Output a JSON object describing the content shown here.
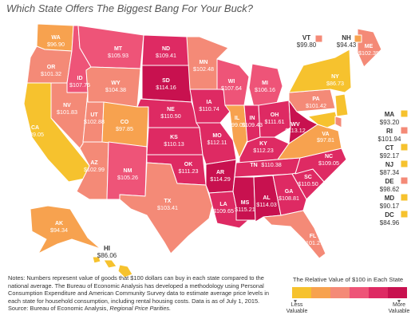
{
  "title": "Which State Offers The Biggest Bang For Your Buck?",
  "colors": {
    "c1": "#f6c22e",
    "c2": "#f7a24f",
    "c3": "#f48a77",
    "c4": "#ee5478",
    "c5": "#de2a63",
    "c6": "#c8114f"
  },
  "states": {
    "WA": {
      "abbr": "WA",
      "value": "$96.90",
      "color": "#f7a24f"
    },
    "OR": {
      "abbr": "OR",
      "value": "$101.32",
      "color": "#f48a77"
    },
    "CA": {
      "abbr": "CA",
      "value": "$89.05",
      "color": "#f6c22e"
    },
    "ID": {
      "abbr": "ID",
      "value": "$107.76",
      "color": "#ee5478"
    },
    "NV": {
      "abbr": "NV",
      "value": "$101.83",
      "color": "#f48a77"
    },
    "MT": {
      "abbr": "MT",
      "value": "$105.93",
      "color": "#ee5478"
    },
    "WY": {
      "abbr": "WY",
      "value": "$104.38",
      "color": "#f48a77"
    },
    "UT": {
      "abbr": "UT",
      "value": "$102.88",
      "color": "#f48a77"
    },
    "AZ": {
      "abbr": "AZ",
      "value": "$102.99",
      "color": "#f48a77"
    },
    "CO": {
      "abbr": "CO",
      "value": "$97.85",
      "color": "#f7a24f"
    },
    "NM": {
      "abbr": "NM",
      "value": "$105.26",
      "color": "#ee5478"
    },
    "ND": {
      "abbr": "ND",
      "value": "$109.41",
      "color": "#de2a63"
    },
    "SD": {
      "abbr": "SD",
      "value": "$114.16",
      "color": "#c8114f"
    },
    "NE": {
      "abbr": "NE",
      "value": "$110.50",
      "color": "#de2a63"
    },
    "KS": {
      "abbr": "KS",
      "value": "$110.13",
      "color": "#de2a63"
    },
    "OK": {
      "abbr": "OK",
      "value": "$111.23",
      "color": "#de2a63"
    },
    "TX": {
      "abbr": "TX",
      "value": "$103.41",
      "color": "#f48a77"
    },
    "MN": {
      "abbr": "MN",
      "value": "$102.48",
      "color": "#f48a77"
    },
    "IA": {
      "abbr": "IA",
      "value": "$110.74",
      "color": "#de2a63"
    },
    "MO": {
      "abbr": "MO",
      "value": "$112.11",
      "color": "#de2a63"
    },
    "AR": {
      "abbr": "AR",
      "value": "$114.29",
      "color": "#c8114f"
    },
    "LA": {
      "abbr": "LA",
      "value": "$109.65",
      "color": "#de2a63"
    },
    "WI": {
      "abbr": "WI",
      "value": "$107.64",
      "color": "#ee5478"
    },
    "IL": {
      "abbr": "IL",
      "value": "$99.01",
      "color": "#f7a24f"
    },
    "MI": {
      "abbr": "MI",
      "value": "$106.16",
      "color": "#ee5478"
    },
    "IN": {
      "abbr": "IN",
      "value": "$109.43",
      "color": "#de2a63"
    },
    "OH": {
      "abbr": "OH",
      "value": "$111.61",
      "color": "#de2a63"
    },
    "KY": {
      "abbr": "KY",
      "value": "$112.23",
      "color": "#de2a63"
    },
    "TN": {
      "abbr": "TN",
      "value": "$110.38",
      "color": "#de2a63"
    },
    "MS": {
      "abbr": "MS",
      "value": "$115.21",
      "color": "#c8114f"
    },
    "AL": {
      "abbr": "AL",
      "value": "$114.03",
      "color": "#c8114f"
    },
    "GA": {
      "abbr": "GA",
      "value": "$108.81",
      "color": "#de2a63"
    },
    "FL": {
      "abbr": "FL",
      "value": "$101.27",
      "color": "#f48a77"
    },
    "SC": {
      "abbr": "SC",
      "value": "$110.50",
      "color": "#de2a63"
    },
    "NC": {
      "abbr": "NC",
      "value": "$109.05",
      "color": "#de2a63"
    },
    "VA": {
      "abbr": "VA",
      "value": "$97.81",
      "color": "#f7a24f"
    },
    "WV": {
      "abbr": "WV",
      "value": "$113.12",
      "color": "#c8114f"
    },
    "PA": {
      "abbr": "PA",
      "value": "$101.42",
      "color": "#f48a77"
    },
    "NY": {
      "abbr": "NY",
      "value": "$86.73",
      "color": "#f6c22e"
    },
    "ME": {
      "abbr": "ME",
      "value": "$102.35",
      "color": "#f48a77"
    },
    "AK": {
      "abbr": "AK",
      "value": "$94.34",
      "color": "#f7a24f"
    },
    "HI": {
      "abbr": "HI",
      "value": "$86.06",
      "color": "#f6c22e"
    },
    "VT": {
      "abbr": "VT",
      "value": "$99.80",
      "color": "#f48a77"
    },
    "NH": {
      "abbr": "NH",
      "value": "$94.43",
      "color": "#f7a24f"
    },
    "MA": {
      "abbr": "MA",
      "value": "$93.20",
      "color": "#f6c22e"
    },
    "RI": {
      "abbr": "RI",
      "value": "$101.94",
      "color": "#f48a77"
    },
    "CT": {
      "abbr": "CT",
      "value": "$92.17",
      "color": "#f6c22e"
    },
    "NJ": {
      "abbr": "NJ",
      "value": "$87.34",
      "color": "#f6c22e"
    },
    "DE": {
      "abbr": "DE",
      "value": "$98.62",
      "color": "#f48a77"
    },
    "MD": {
      "abbr": "MD",
      "value": "$90.17",
      "color": "#f6c22e"
    },
    "DC": {
      "abbr": "DC",
      "value": "$84.96",
      "color": "#f6c22e"
    }
  },
  "notes": {
    "text": "Notes: Numbers represent value of goods that $100 dollars can buy in each state compared to the national average. The Bureau of Economic Analysis has developed a methodology using Personal Consumption Expenditure and American Community Survey data to estimate average price levels in each state for household consumption, including rental housing costs. Data is as of July 1, 2015.",
    "source_prefix": "Source: Bureau of Economic Analysis, ",
    "source_title": "Regional Price Parities."
  },
  "legend": {
    "title": "The Relative Value of $100 in Each State",
    "less": "Less Valuable",
    "more": "More Valuable"
  }
}
